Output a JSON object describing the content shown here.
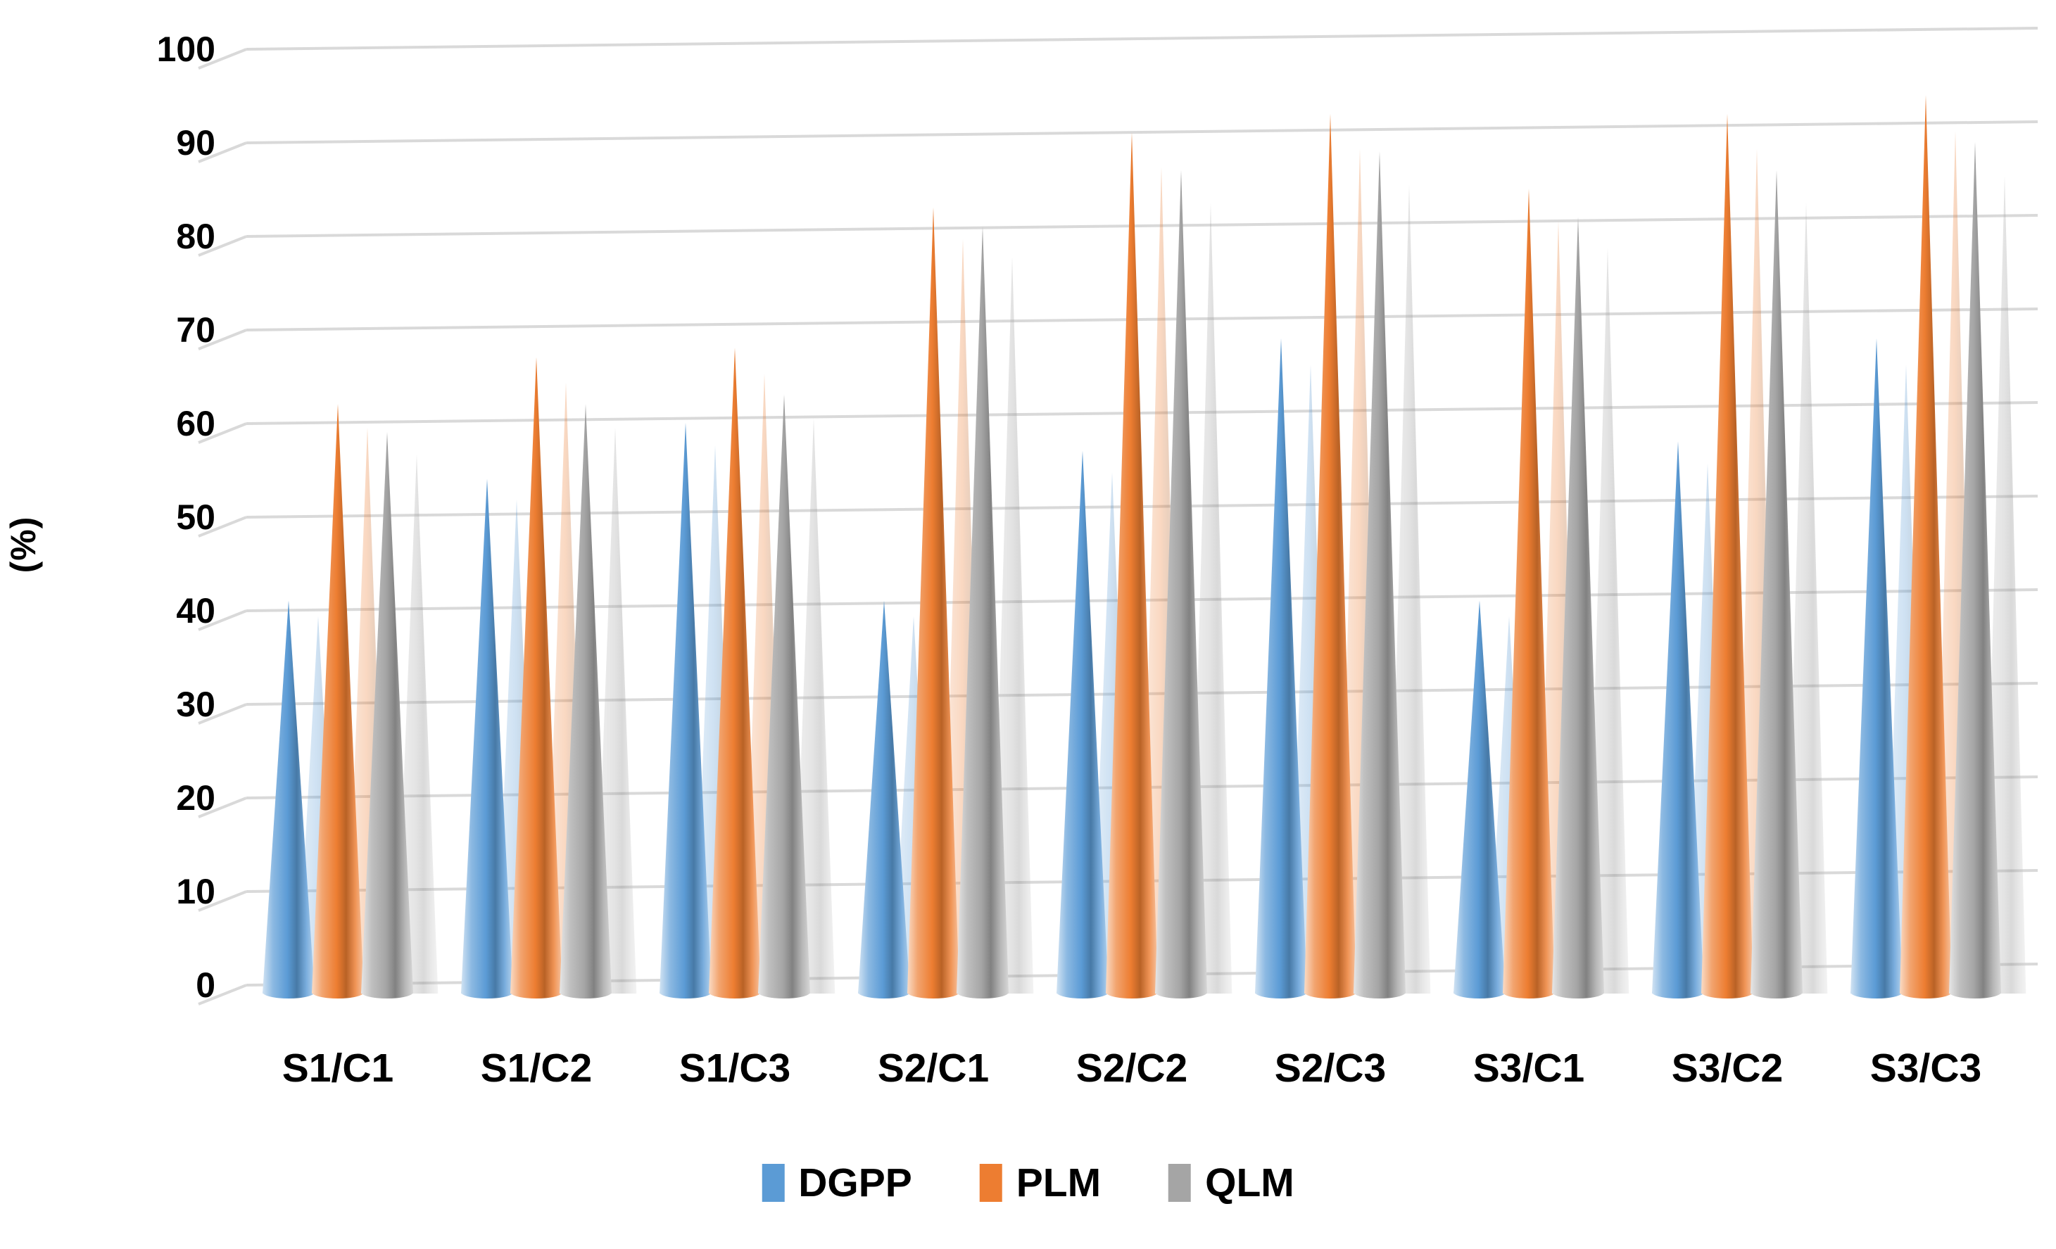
{
  "chart_data": {
    "type": "bar",
    "subtype": "3d-cone",
    "title": "",
    "xlabel": "",
    "ylabel": "(%)",
    "ylim": [
      0,
      100
    ],
    "ytick_interval": 10,
    "yticks": [
      "0",
      "10",
      "20",
      "30",
      "40",
      "50",
      "60",
      "70",
      "80",
      "90",
      "100"
    ],
    "categories": [
      "S1/C1",
      "S1/C2",
      "S1/C3",
      "S2/C1",
      "S2/C2",
      "S2/C3",
      "S3/C1",
      "S3/C2",
      "S3/C3"
    ],
    "series": [
      {
        "name": "DGPP",
        "color": "#5B9BD5",
        "values": [
          42,
          55,
          61,
          42,
          58,
          70,
          42,
          59,
          70
        ]
      },
      {
        "name": "PLM",
        "color": "#ED7D31",
        "values": [
          63,
          68,
          69,
          84,
          92,
          94,
          86,
          94,
          96
        ]
      },
      {
        "name": "QLM",
        "color": "#A5A5A5",
        "values": [
          60,
          63,
          64,
          82,
          88,
          90,
          83,
          88,
          91
        ]
      }
    ],
    "legend_position": "bottom",
    "grid": true,
    "gridline_color": "#D9D9D9",
    "background_color": "#FFFFFF",
    "text_color": "#000000"
  }
}
